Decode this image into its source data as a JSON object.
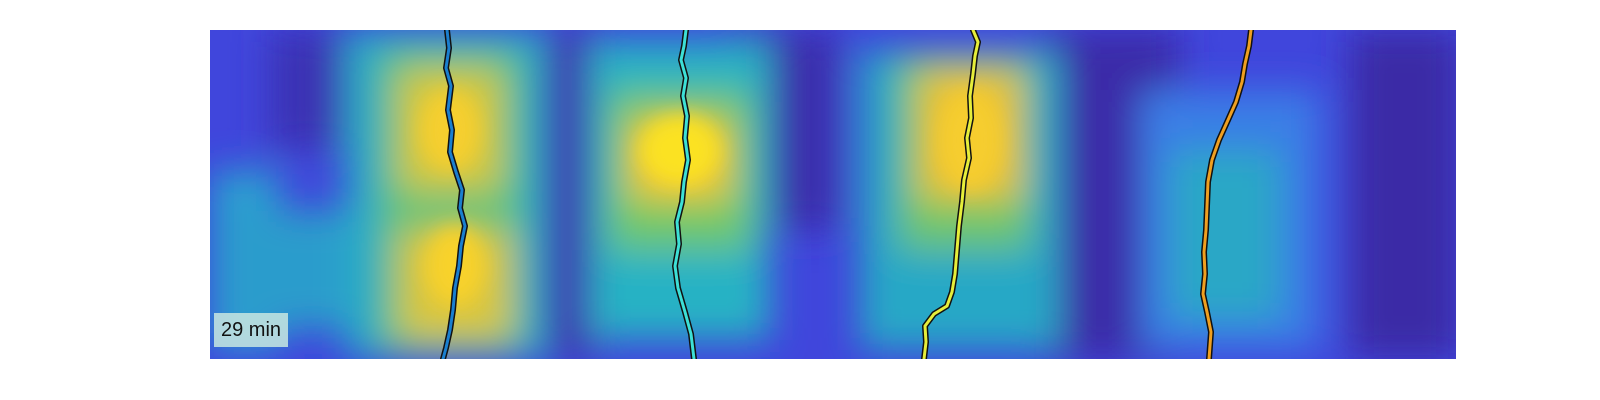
{
  "overlay": {
    "time_label": "29 min"
  },
  "colormap": {
    "dark": "#3c2aa6",
    "blue": "#3f5ff0",
    "cyan": "#25b4c6",
    "green": "#8fd050",
    "yellow": "#f4c830",
    "peak": "#fbe224"
  },
  "tracks": [
    {
      "color": "#1a7fcf"
    },
    {
      "color": "#3de0d6"
    },
    {
      "color": "#e6ee3a"
    },
    {
      "color": "#f0a020"
    }
  ]
}
